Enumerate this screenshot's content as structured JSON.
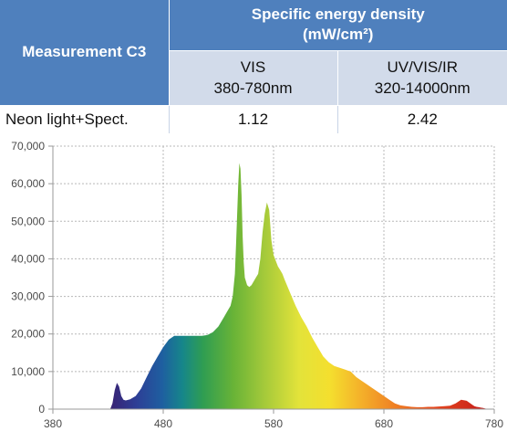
{
  "table": {
    "measurement_label": "Measurement C3",
    "group_title_line1": "Specific energy density",
    "group_title_line2": "(mW/cm²)",
    "columns": [
      {
        "name": "VIS",
        "range": "380-780nm"
      },
      {
        "name": "UV/VIS/IR",
        "range": "320-14000nm"
      }
    ],
    "rows": [
      {
        "label": "Neon light+Spect.",
        "values": [
          "1.12",
          "2.42"
        ]
      }
    ]
  },
  "chart_data": {
    "type": "area",
    "title": "",
    "xlabel": "",
    "ylabel": "",
    "xlim": [
      380,
      780
    ],
    "ylim": [
      0,
      70000
    ],
    "x_ticks": [
      "380",
      "480",
      "580",
      "680",
      "780"
    ],
    "y_ticks": [
      "0",
      "10,000",
      "20,000",
      "30,000",
      "40,000",
      "50,000",
      "60,000",
      "70,000"
    ],
    "grid": true,
    "fill": "visible-spectrum-gradient",
    "series": [
      {
        "x": [
          432,
          434,
          436,
          438,
          440,
          442,
          444,
          446,
          450,
          455,
          460,
          465,
          470,
          475,
          480,
          485,
          490,
          495,
          500,
          505,
          510,
          515,
          520,
          525,
          530,
          535,
          538,
          541,
          543,
          545,
          546,
          547,
          548,
          549,
          550,
          551,
          552,
          553,
          554,
          556,
          558,
          560,
          562,
          564,
          566,
          568,
          570,
          572,
          574,
          576,
          578,
          580,
          582,
          584,
          586,
          588,
          590,
          595,
          600,
          605,
          610,
          615,
          620,
          625,
          630,
          635,
          640,
          645,
          650,
          655,
          660,
          665,
          670,
          675,
          680,
          685,
          690,
          695,
          700,
          705,
          710,
          715,
          720,
          725,
          730,
          735,
          740,
          745,
          750,
          755,
          760,
          762,
          764,
          766,
          768,
          770,
          772,
          774
        ],
        "y": [
          0,
          1500,
          5000,
          7000,
          6000,
          3500,
          2500,
          2300,
          2600,
          3500,
          5500,
          8500,
          11500,
          14000,
          16500,
          18500,
          19500,
          19500,
          19500,
          19500,
          19500,
          19500,
          19700,
          20500,
          22000,
          24500,
          26000,
          27500,
          30000,
          36000,
          44000,
          52000,
          60000,
          65500,
          64000,
          57000,
          46000,
          39000,
          35000,
          33000,
          32500,
          33000,
          34000,
          35000,
          36000,
          40000,
          47000,
          52000,
          55000,
          53000,
          45000,
          41000,
          39500,
          38000,
          37000,
          36000,
          34500,
          31000,
          27500,
          24500,
          22000,
          19000,
          16500,
          14000,
          12500,
          11500,
          11000,
          10500,
          10000,
          8500,
          7500,
          6500,
          5500,
          4500,
          3500,
          2500,
          1500,
          1000,
          800,
          600,
          500,
          500,
          600,
          600,
          700,
          800,
          900,
          1500,
          2500,
          2200,
          1200,
          800,
          600,
          500,
          400,
          300,
          150,
          0
        ]
      }
    ]
  }
}
